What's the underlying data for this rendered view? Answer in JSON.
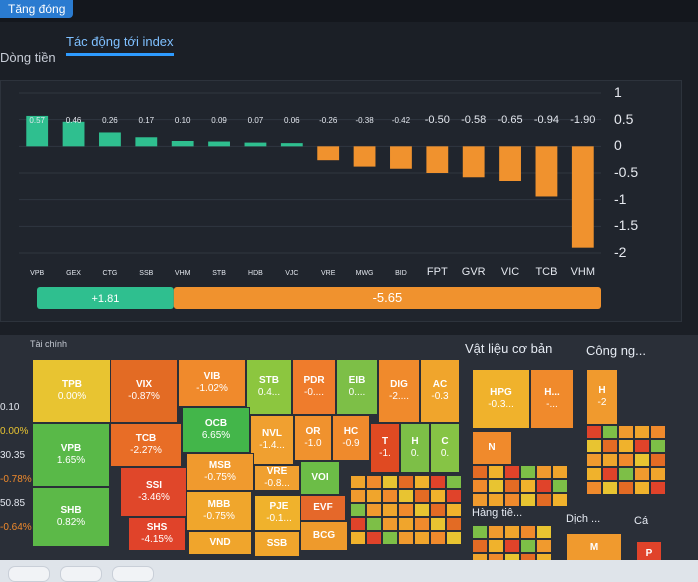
{
  "window": {
    "active_tab": "Tăng đóng"
  },
  "subtabs": {
    "left": "Dòng tiền",
    "active": "Tác động tới index"
  },
  "y_axis": {
    "ticks": [
      "1",
      "0.5",
      "0",
      "-0.5",
      "-1",
      "-1.5",
      "-2"
    ]
  },
  "chart_data": {
    "type": "bar",
    "categories": [
      "VPB",
      "GEX",
      "CTG",
      "SSB",
      "VHM",
      "STB",
      "HDB",
      "VJC",
      "VRE",
      "MWG",
      "BID",
      "FPT",
      "GVR",
      "VIC",
      "TCB",
      "VHM"
    ],
    "values": [
      0.57,
      0.46,
      0.26,
      0.17,
      0.1,
      0.09,
      0.07,
      0.06,
      -0.26,
      -0.38,
      -0.42,
      -0.5,
      -0.58,
      -0.65,
      -0.94,
      -1.9
    ],
    "value_labels": [
      "0.57",
      "0.46",
      "0.26",
      "0.17",
      "0.10",
      "0.09",
      "0.07",
      "0.06",
      "-0.26",
      "-0.38",
      "-0.42",
      "-0.50",
      "-0.58",
      "-0.65",
      "-0.94",
      "-1.90"
    ],
    "ylim": [
      -2,
      1
    ],
    "colors": {
      "positive": "#2fbf8f",
      "negative": "#f0922e"
    },
    "summary": {
      "positive": "+1.81",
      "negative": "-5.65"
    }
  },
  "treemap": {
    "panel_title": "Tài chính",
    "sectors": [
      "Vật liệu cơ bản",
      "Công ng...",
      "Hàng tiê...",
      "Dịch ...",
      "Cá"
    ],
    "tiles": [
      {
        "t": "TPB",
        "v": "0.00%",
        "color": "#e8c431"
      },
      {
        "t": "VIX",
        "v": "-0.87%",
        "color": "#e36b24"
      },
      {
        "t": "VIB",
        "v": "-1.02%",
        "color": "#f08a2c"
      },
      {
        "t": "STB",
        "v": "0.4...",
        "color": "#8cc63f"
      },
      {
        "t": "PDR",
        "v": "-0....",
        "color": "#ef7c2c"
      },
      {
        "t": "EIB",
        "v": "0....",
        "color": "#7dbf47"
      },
      {
        "t": "DIG",
        "v": "-2....",
        "color": "#f08a2c"
      },
      {
        "t": "AC",
        "v": "-0.3",
        "color": "#f0a52c"
      },
      {
        "t": "VPB",
        "v": "1.65%",
        "color": "#59b948"
      },
      {
        "t": "TCB",
        "v": "-2.27%",
        "color": "#e86d26"
      },
      {
        "t": "OCB",
        "v": "6.65%",
        "color": "#43b64a"
      },
      {
        "t": "NVL",
        "v": "-1.4...",
        "color": "#f0a030"
      },
      {
        "t": "OR",
        "v": "-1.0",
        "color": "#f0922e"
      },
      {
        "t": "HC",
        "v": "-0.9",
        "color": "#ef8a2c"
      },
      {
        "t": "T",
        "v": "-1.",
        "color": "#e04a22"
      },
      {
        "t": "H",
        "v": "0.",
        "color": "#7dbf47"
      },
      {
        "t": "C",
        "v": "0.",
        "color": "#86c445"
      },
      {
        "t": "SHB",
        "v": "0.82%",
        "color": "#5cb948"
      },
      {
        "t": "SSI",
        "v": "-3.46%",
        "color": "#e0472a"
      },
      {
        "t": "MSB",
        "v": "-0.75%",
        "color": "#f09a2e"
      },
      {
        "t": "VRE",
        "v": "-0.8...",
        "color": "#f0a030"
      },
      {
        "t": "VOI",
        "v": "",
        "color": "#6cbd47"
      },
      {
        "t": "MBB",
        "v": "-0.75%",
        "color": "#f0a62c"
      },
      {
        "t": "PJE",
        "v": "-0.1...",
        "color": "#f0b22c"
      },
      {
        "t": "SHS",
        "v": "-4.15%",
        "color": "#e0432a"
      },
      {
        "t": "VND",
        "v": "",
        "color": "#f0a52c"
      },
      {
        "t": "EVF",
        "v": "",
        "color": "#e5682a"
      },
      {
        "t": "BCG",
        "v": "",
        "color": "#ee9a2c"
      },
      {
        "t": "SSB",
        "v": "",
        "color": "#f0a52c"
      },
      {
        "t": "HPG",
        "v": "-0.3...",
        "color": "#f0b22c"
      },
      {
        "t": "H...",
        "v": "-...",
        "color": "#f08a2c"
      },
      {
        "t": "N",
        "v": "",
        "color": "#f08a2c"
      },
      {
        "t": "H",
        "v": "-2",
        "color": "#f09a2e"
      },
      {
        "t": "M",
        "v": "",
        "color": "#f09a2e"
      },
      {
        "t": "P",
        "v": "",
        "color": "#e0432a"
      }
    ]
  },
  "left_values": [
    "0.10",
    "0.00%",
    "30.35",
    "-0.78%",
    "50.85",
    "-0.64%"
  ]
}
